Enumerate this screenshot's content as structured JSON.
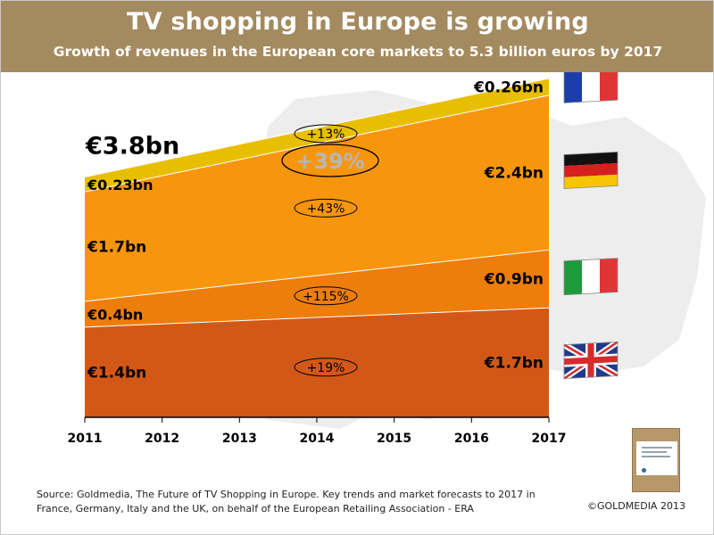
{
  "header": {
    "title": "TV shopping in Europe is growing",
    "subtitle": "Growth of revenues in the European core markets to 5.3 billion euros by 2017"
  },
  "chart_data": {
    "type": "area",
    "stacked": true,
    "x": [
      "2011",
      "2012",
      "2013",
      "2014",
      "2015",
      "2016",
      "2017"
    ],
    "series": [
      {
        "name": "UK",
        "start": 1.4,
        "end": 1.7,
        "start_label": "€1.4bn",
        "end_label": "€1.7bn",
        "growth": "+19%",
        "color": "#d35818",
        "flag": "uk-flag-icon"
      },
      {
        "name": "Italy",
        "start": 0.4,
        "end": 0.9,
        "start_label": "€0.4bn",
        "end_label": "€0.9bn",
        "growth": "+115%",
        "color": "#ed7e0c",
        "flag": "italy-flag-icon"
      },
      {
        "name": "Germany",
        "start": 1.7,
        "end": 2.4,
        "start_label": "€1.7bn",
        "end_label": "€2.4bn",
        "growth": "+43%",
        "color": "#f7960d",
        "flag": "germany-flag-icon"
      },
      {
        "name": "France",
        "start": 0.23,
        "end": 0.26,
        "start_label": "€0.23bn",
        "end_label": "€0.26bn",
        "growth": "+13%",
        "color": "#e8bf00",
        "flag": "france-flag-icon"
      }
    ],
    "total_start_label": "€3.8bn",
    "total_end_label": "€5.3bn",
    "total_growth": "+39%",
    "ylim": [
      0,
      5.6
    ],
    "colors": {
      "map": "#e8e8e8",
      "axis": "#000000",
      "oval": "#000000",
      "total_growth": "#b7b7b7"
    }
  },
  "footer": {
    "source": "Source: Goldmedia, The Future of TV Shopping in Europe. Key trends and market forecasts to 2017 in France, Germany, Italy and the UK, on behalf of the European Retailing Association - ERA",
    "copyright": "©GOLDMEDIA 2013"
  }
}
